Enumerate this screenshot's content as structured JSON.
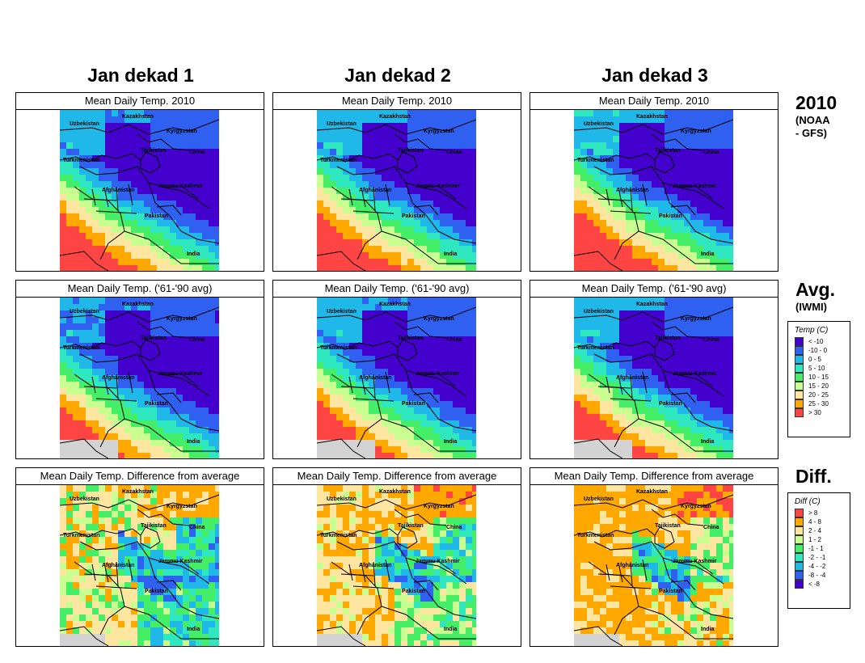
{
  "columns": [
    "Jan dekad 1",
    "Jan dekad 2",
    "Jan dekad 3"
  ],
  "row_labels": [
    {
      "big": "2010",
      "small": [
        "(NOAA",
        "- GFS)"
      ]
    },
    {
      "big": "Avg.",
      "small": [
        "(IWMI)"
      ]
    },
    {
      "big": "Diff.",
      "small": []
    }
  ],
  "panel_titles": [
    "Mean Daily Temp. 2010",
    "Mean Daily Temp. ('61-'90 avg)",
    "Mean Daily Temp. Difference from average"
  ],
  "map_labels": [
    "Kazakhstan",
    "Uzbekistan",
    "Kyrgyzstan",
    "Tajikistan",
    "Turkmenistan",
    "China",
    "Afghanistan",
    "Jammu Kashmir",
    "Pakistan",
    "India"
  ],
  "legend_temp": {
    "title": "Temp (C)",
    "items": [
      {
        "label": "< -10",
        "color": "#4400cc"
      },
      {
        "label": "-10 - 0",
        "color": "#3060f0"
      },
      {
        "label": "0 - 5",
        "color": "#20b8e8"
      },
      {
        "label": "5 - 10",
        "color": "#30e8c0"
      },
      {
        "label": "10 - 15",
        "color": "#44ee66"
      },
      {
        "label": "15 - 20",
        "color": "#c8ff90"
      },
      {
        "label": "20 - 25",
        "color": "#ffe6a0"
      },
      {
        "label": "25 - 30",
        "color": "#ffa800"
      },
      {
        "label": "> 30",
        "color": "#ff4444"
      }
    ]
  },
  "legend_diff": {
    "title": "Diff (C)",
    "items": [
      {
        "label": "> 8",
        "color": "#ff4444"
      },
      {
        "label": "4 - 8",
        "color": "#ffa800"
      },
      {
        "label": "2 - 4",
        "color": "#ffe6a0"
      },
      {
        "label": "1 - 2",
        "color": "#c8ff90"
      },
      {
        "label": "-1 - 1",
        "color": "#44ee66"
      },
      {
        "label": "-2 - -1",
        "color": "#30e8c0"
      },
      {
        "label": "-4 - -2",
        "color": "#20b8e8"
      },
      {
        "label": "-8 - -4",
        "color": "#3060f0"
      },
      {
        "label": "< -8",
        "color": "#4400cc"
      }
    ]
  },
  "chart_data": {
    "type": "heatmap",
    "grid": "3 rows x 3 columns of maps",
    "row_fields": [
      "2010 mean daily temperature (NOAA-GFS)",
      "1961-1990 average mean daily temperature (IWMI)",
      "difference 2010 minus average"
    ],
    "temp_bins_c": [
      [
        -99,
        -10
      ],
      [
        -10,
        0
      ],
      [
        0,
        5
      ],
      [
        5,
        10
      ],
      [
        10,
        15
      ],
      [
        15,
        20
      ],
      [
        20,
        25
      ],
      [
        25,
        30
      ],
      [
        30,
        99
      ]
    ],
    "diff_bins_c": [
      [
        8,
        99
      ],
      [
        4,
        8
      ],
      [
        2,
        4
      ],
      [
        1,
        2
      ],
      [
        -1,
        1
      ],
      [
        -2,
        -1
      ],
      [
        -4,
        -2
      ],
      [
        -8,
        -4
      ],
      [
        -99,
        -8
      ]
    ]
  }
}
